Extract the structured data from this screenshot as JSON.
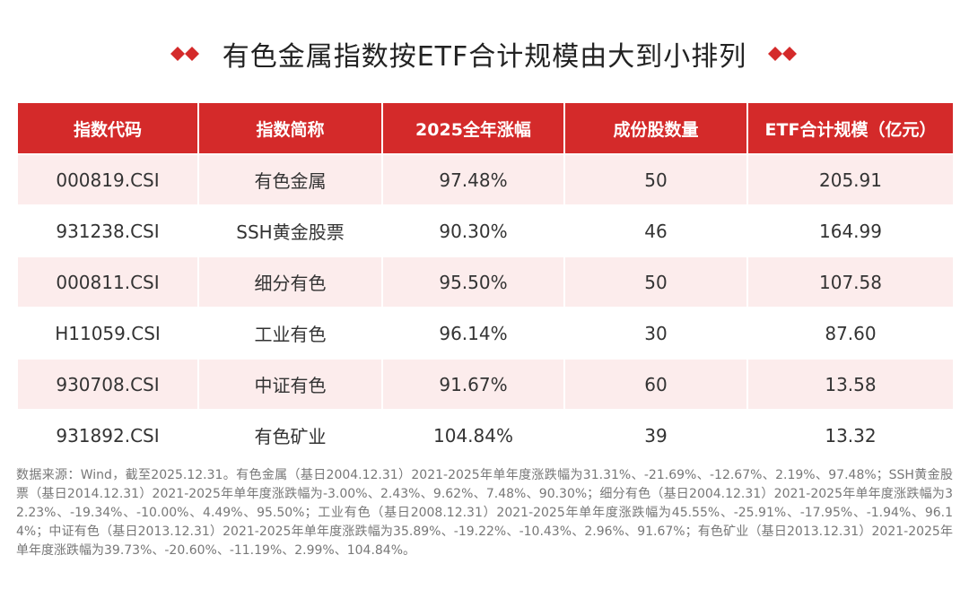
{
  "header": {
    "title": "有色金属指数按ETF合计规模由大到小排列"
  },
  "table": {
    "columns": [
      "指数代码",
      "指数简称",
      "2025全年涨幅",
      "成份股数量",
      "ETF合计规模（亿元）"
    ],
    "rows": [
      [
        "000819.CSI",
        "有色金属",
        "97.48%",
        "50",
        "205.91"
      ],
      [
        "931238.CSI",
        "SSH黄金股票",
        "90.30%",
        "46",
        "164.99"
      ],
      [
        "000811.CSI",
        "细分有色",
        "95.50%",
        "50",
        "107.58"
      ],
      [
        "H11059.CSI",
        "工业有色",
        "96.14%",
        "30",
        "87.60"
      ],
      [
        "930708.CSI",
        "中证有色",
        "91.67%",
        "60",
        "13.58"
      ],
      [
        "931892.CSI",
        "有色矿业",
        "104.84%",
        "39",
        "13.32"
      ]
    ]
  },
  "footnote": "数据来源：Wind，截至2025.12.31。有色金属（基日2004.12.31）2021-2025年单年度涨跌幅为31.31%、-21.69%、-12.67%、2.19%、97.48%；SSH黄金股票（基日2014.12.31）2021-2025年单年度涨跌幅为-3.00%、2.43%、9.62%、7.48%、90.30%；细分有色（基日2004.12.31）2021-2025年单年度涨跌幅为32.23%、-19.34%、-10.00%、4.49%、95.50%；工业有色（基日2008.12.31）2021-2025年单年度涨跌幅为45.55%、-25.91%、-17.95%、-1.94%、96.14%；中证有色（基日2013.12.31）2021-2025年单年度涨跌幅为35.89%、-19.22%、-10.43%、2.96%、91.67%；有色矿业（基日2013.12.31）2021-2025年单年度涨跌幅为39.73%、-20.60%、-11.19%、2.99%、104.84%。"
}
